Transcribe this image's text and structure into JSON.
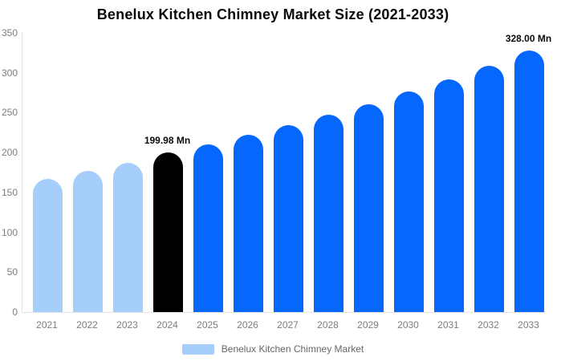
{
  "title": "Benelux Kitchen Chimney Market Size (2021-2033)",
  "legend": {
    "label": "Benelux Kitchen Chimney Market",
    "swatch_color": "#a5cefb"
  },
  "colors": {
    "past": "#a5cefb",
    "current": "#000000",
    "forecast": "#0667fc",
    "axis_line": "#e3e3e3",
    "tick_text": "#7d7d7d",
    "label_text": "#0a0a0a"
  },
  "chart_data": {
    "type": "bar",
    "title": "Benelux Kitchen Chimney Market Size (2021-2033)",
    "xlabel": "",
    "ylabel": "",
    "categories": [
      "2021",
      "2022",
      "2023",
      "2024",
      "2025",
      "2026",
      "2027",
      "2028",
      "2029",
      "2030",
      "2031",
      "2032",
      "2033"
    ],
    "values": [
      167,
      177,
      187,
      199.98,
      210,
      222,
      234,
      247,
      261,
      277,
      292,
      309,
      328
    ],
    "unit": "Mn",
    "color_roles": [
      "past",
      "past",
      "past",
      "current",
      "forecast",
      "forecast",
      "forecast",
      "forecast",
      "forecast",
      "forecast",
      "forecast",
      "forecast",
      "forecast"
    ],
    "ylim": [
      0,
      350
    ],
    "yticks": [
      0,
      50,
      100,
      150,
      200,
      250,
      300,
      350
    ],
    "grid": false,
    "legend_position": "bottom",
    "annotations": [
      {
        "category": "2024",
        "text": "199.98 Mn"
      },
      {
        "category": "2033",
        "text": "328.00 Mn"
      }
    ]
  }
}
